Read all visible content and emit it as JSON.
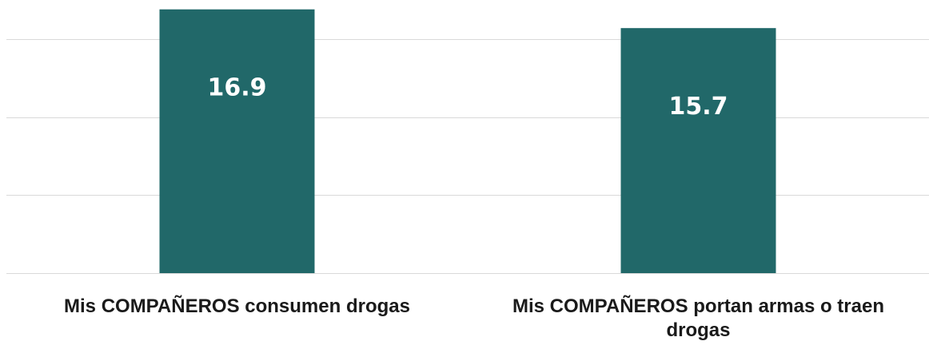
{
  "chart_data": {
    "type": "bar",
    "categories": [
      [
        "Mis COMPAÑEROS consumen drogas"
      ],
      [
        "Mis COMPAÑEROS portan armas o traen",
        "drogas"
      ]
    ],
    "values": [
      16.9,
      15.7
    ],
    "value_labels": [
      "16.9",
      "15.7"
    ],
    "ylim": [
      0,
      17.5
    ],
    "grid": true,
    "gridline_values": [
      5,
      10,
      15
    ],
    "y_tick_labels": "hidden",
    "legend": "none",
    "colors": {
      "bar": "#216869",
      "grid": "#d9d9d9",
      "axis": "#d9d9d9",
      "label": "#1a1a1a",
      "value_label": "#ffffff"
    }
  }
}
